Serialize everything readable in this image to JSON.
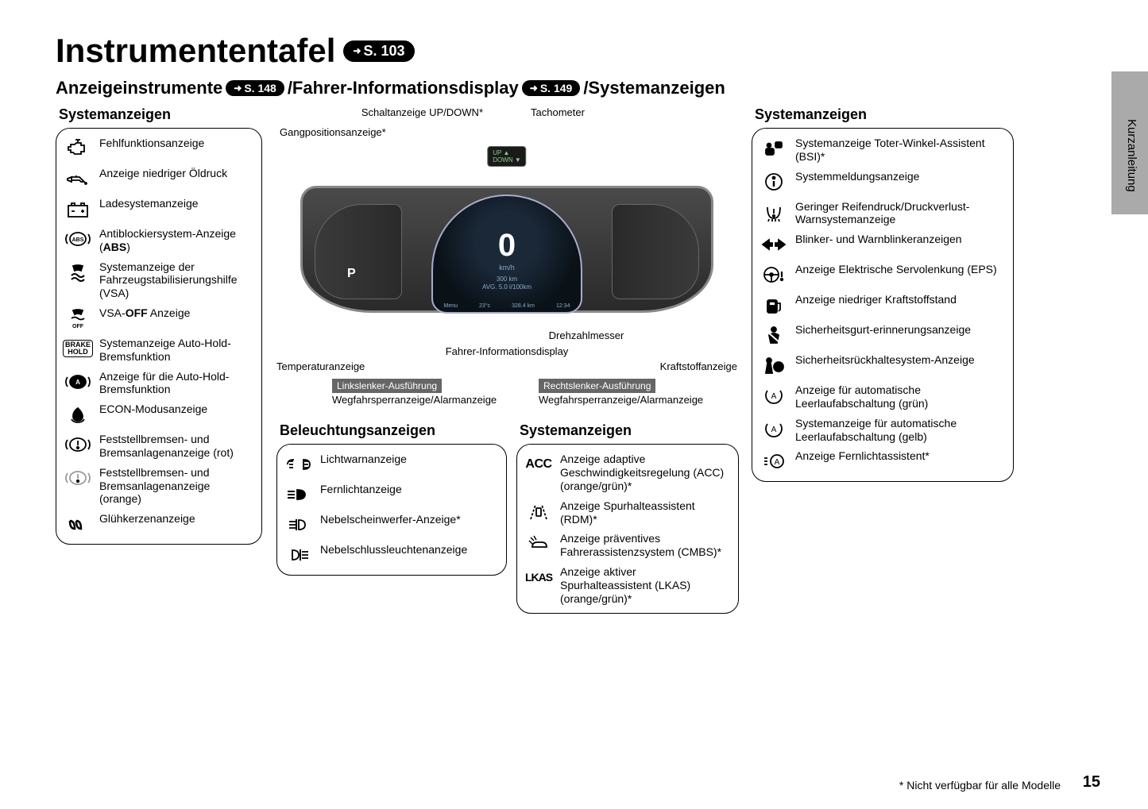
{
  "title": "Instrumententafel",
  "title_ref": "S. 103",
  "subtitle_parts": {
    "a": "Anzeigeinstrumente",
    "ref_a": "S. 148",
    "b": "/Fahrer-Informationsdisplay",
    "ref_b": "S. 149",
    "c": "/Systemanzeigen"
  },
  "side_label": "Kurzanleitung",
  "footnote": "* Nicht verfügbar für alle Modelle",
  "page_number": "15",
  "left_panel": {
    "title": "Systemanzeigen",
    "items": [
      {
        "icon": "engine",
        "label": "Fehlfunktionsanzeige"
      },
      {
        "icon": "oilcan",
        "label": "Anzeige niedriger Öldruck"
      },
      {
        "icon": "battery",
        "label": "Ladesystemanzeige"
      },
      {
        "icon": "abs",
        "label_html": "Antiblockiersystem-Anzeige (<b>ABS</b>)"
      },
      {
        "icon": "vsa",
        "label": "Systemanzeige der Fahrzeugstabilisierungshilfe (VSA)"
      },
      {
        "icon": "vsaoff",
        "label_html": "VSA-<b>OFF</b> Anzeige"
      },
      {
        "icon": "brakehold",
        "label": "Systemanzeige Auto-Hold-Bremsfunktion"
      },
      {
        "icon": "autohold",
        "label": "Anzeige für die Auto-Hold-Bremsfunktion"
      },
      {
        "icon": "econ",
        "label": "ECON-Modusanzeige"
      },
      {
        "icon": "brake-red",
        "label": "Feststellbremsen- und Bremsanlagenanzeige (rot)"
      },
      {
        "icon": "brake-org",
        "label": "Feststellbremsen- und Bremsanlagenanzeige (orange)"
      },
      {
        "icon": "glow",
        "label": "Glühkerzenanzeige"
      }
    ]
  },
  "center": {
    "callouts_top": {
      "shift": "Schaltanzeige UP/DOWN*",
      "tacho": "Tachometer",
      "gear": "Gangpositionsanzeige*"
    },
    "cluster": {
      "speed": "0",
      "unit": "km/h",
      "trip": "300 km",
      "avg": "AVG.  5.0 l/100km",
      "menu": "Menu",
      "temp": "23°c",
      "odo": "328.4 km",
      "time": "12:34",
      "gear": "P",
      "shift_up": "UP",
      "shift_dn": "DOWN"
    },
    "callouts_bottom": {
      "temp": "Temperaturanzeige",
      "driver_info": "Fahrer-Informationsdisplay",
      "rpm": "Drehzahlmesser",
      "fuel": "Kraftstoffanzeige",
      "left_variant": "Linkslenker-Ausführung",
      "left_text": "Wegfahrsperranzeige/Alarmanzeige",
      "right_variant": "Rechtslenker-Ausführung",
      "right_text": "Wegfahrsperranzeige/Alarmanzeige"
    },
    "lighting_panel": {
      "title": "Beleuchtungsanzeigen",
      "items": [
        {
          "icon": "lights",
          "label": "Lichtwarnanzeige"
        },
        {
          "icon": "highbeam",
          "label": "Fernlichtanzeige"
        },
        {
          "icon": "foglamp",
          "label": "Nebelscheinwerfer-Anzeige*"
        },
        {
          "icon": "rearfog",
          "label": "Nebelschlussleuchtenanzeige"
        }
      ]
    },
    "sys_panel": {
      "title": "Systemanzeigen",
      "items": [
        {
          "icon": "acc",
          "label": "Anzeige adaptive Geschwindigkeitsregelung (ACC) (orange/grün)*"
        },
        {
          "icon": "rdm",
          "label": "Anzeige Spurhalteassistent (RDM)*"
        },
        {
          "icon": "cmbs",
          "label": "Anzeige präventives Fahrerassistenzsystem (CMBS)*"
        },
        {
          "icon": "lkas",
          "label": "Anzeige aktiver Spurhalteassistent (LKAS) (orange/grün)*"
        }
      ]
    }
  },
  "right_panel": {
    "title": "Systemanzeigen",
    "items": [
      {
        "icon": "bsi",
        "label": "Systemanzeige Toter-Winkel-Assistent (BSI)*"
      },
      {
        "icon": "info",
        "label": "Systemmeldungsanzeige"
      },
      {
        "icon": "tpms",
        "label": "Geringer Reifendruck/Druckverlust-Warnsystemanzeige"
      },
      {
        "icon": "turn",
        "label": "Blinker- und Warnblinkeranzeigen"
      },
      {
        "icon": "eps",
        "label": "Anzeige Elektrische Servolenkung (EPS)"
      },
      {
        "icon": "lowfuel",
        "label": "Anzeige niedriger Kraftstoffstand"
      },
      {
        "icon": "seatbelt",
        "label": "Sicherheitsgurt-erinnerungsanzeige"
      },
      {
        "icon": "srs",
        "label": "Sicherheitsrückhaltesystem-Anzeige"
      },
      {
        "icon": "idlestop-g",
        "label": "Anzeige für automatische Leerlaufabschaltung (grün)"
      },
      {
        "icon": "idlestop-y",
        "label": "Systemanzeige für automatische Leerlaufabschaltung (gelb)"
      },
      {
        "icon": "hba",
        "label": "Anzeige Fernlichtassistent*"
      }
    ]
  }
}
